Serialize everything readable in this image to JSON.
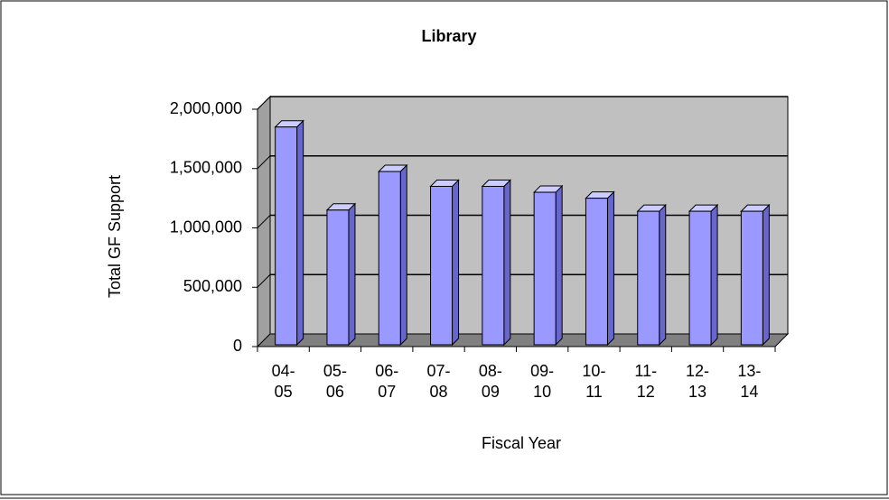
{
  "chart_data": {
    "type": "bar3d",
    "title": "Library",
    "x_label": "Fiscal Year",
    "y_label": "Total GF Support",
    "categories": [
      "04-05",
      "05-06",
      "06-07",
      "07-08",
      "08-09",
      "09-10",
      "10-11",
      "11-12",
      "12-13",
      "13-14"
    ],
    "values": [
      1850000,
      1150000,
      1475000,
      1350000,
      1350000,
      1300000,
      1250000,
      1140000,
      1140000,
      1140000
    ],
    "color": "#9999ff",
    "ylim": [
      0,
      2000000
    ],
    "yticks": [
      {
        "value": 0,
        "label": "0"
      },
      {
        "value": 500000,
        "label": "500,000"
      },
      {
        "value": 1000000,
        "label": "1,000,000"
      },
      {
        "value": 1500000,
        "label": "1,500,000"
      },
      {
        "value": 2000000,
        "label": "2,000,000"
      }
    ],
    "grid": true
  }
}
